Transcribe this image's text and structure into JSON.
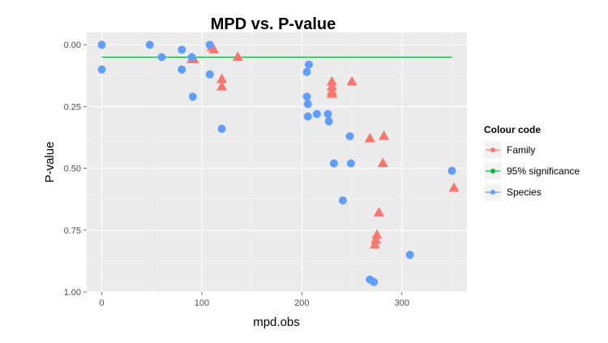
{
  "chart_data": {
    "type": "scatter",
    "title": "MPD vs. P-value",
    "xlabel": "mpd.obs",
    "ylabel": "P-value",
    "xlim": [
      -15,
      365
    ],
    "ylim": [
      1.0,
      -0.05
    ],
    "y_reversed": true,
    "x_ticks": [
      0,
      100,
      200,
      300
    ],
    "x_tick_labels": [
      "0",
      "100",
      "200",
      "300"
    ],
    "y_ticks": [
      0.0,
      0.25,
      0.5,
      0.75,
      1.0
    ],
    "y_tick_labels": [
      "0.00",
      "0.25",
      "0.50",
      "0.75",
      "1.00"
    ],
    "grid": true,
    "legend": {
      "title": "Colour code",
      "position": "right",
      "entries": [
        "Family",
        "95% significance",
        "Species"
      ]
    },
    "colors": {
      "Family": "#F8766D",
      "95% significance": "#00BA38",
      "Species": "#619CFF",
      "panel_bg": "#EBEBEB",
      "grid_major": "#FFFFFF",
      "grid_minor": "#F5F5F5"
    },
    "series": [
      {
        "name": "Family",
        "marker": "triangle",
        "points": [
          [
            110,
            0.01
          ],
          [
            112,
            0.02
          ],
          [
            90,
            0.06
          ],
          [
            92,
            0.06
          ],
          [
            136,
            0.05
          ],
          [
            120,
            0.14
          ],
          [
            120,
            0.17
          ],
          [
            230,
            0.15
          ],
          [
            230,
            0.17
          ],
          [
            230,
            0.19
          ],
          [
            230,
            0.2
          ],
          [
            250,
            0.15
          ],
          [
            268,
            0.38
          ],
          [
            282,
            0.37
          ],
          [
            281,
            0.48
          ],
          [
            352,
            0.58
          ],
          [
            277,
            0.68
          ],
          [
            275,
            0.77
          ],
          [
            274,
            0.79
          ],
          [
            273,
            0.81
          ]
        ]
      },
      {
        "name": "95% significance",
        "marker": "line",
        "points": [
          [
            0,
            0.05
          ],
          [
            350,
            0.05
          ]
        ]
      },
      {
        "name": "Species",
        "marker": "circle",
        "points": [
          [
            0,
            0.0
          ],
          [
            0,
            0.1
          ],
          [
            48,
            0.0
          ],
          [
            60,
            0.05
          ],
          [
            80,
            0.02
          ],
          [
            80,
            0.1
          ],
          [
            90,
            0.05
          ],
          [
            91,
            0.21
          ],
          [
            108,
            0.0
          ],
          [
            108,
            0.12
          ],
          [
            120,
            0.34
          ],
          [
            205,
            0.11
          ],
          [
            207,
            0.08
          ],
          [
            205,
            0.21
          ],
          [
            206,
            0.24
          ],
          [
            206,
            0.29
          ],
          [
            215,
            0.28
          ],
          [
            226,
            0.28
          ],
          [
            227,
            0.31
          ],
          [
            248,
            0.37
          ],
          [
            232,
            0.48
          ],
          [
            249,
            0.48
          ],
          [
            241,
            0.63
          ],
          [
            268,
            0.95
          ],
          [
            272,
            0.96
          ],
          [
            308,
            0.85
          ],
          [
            350,
            0.51
          ]
        ]
      }
    ]
  }
}
